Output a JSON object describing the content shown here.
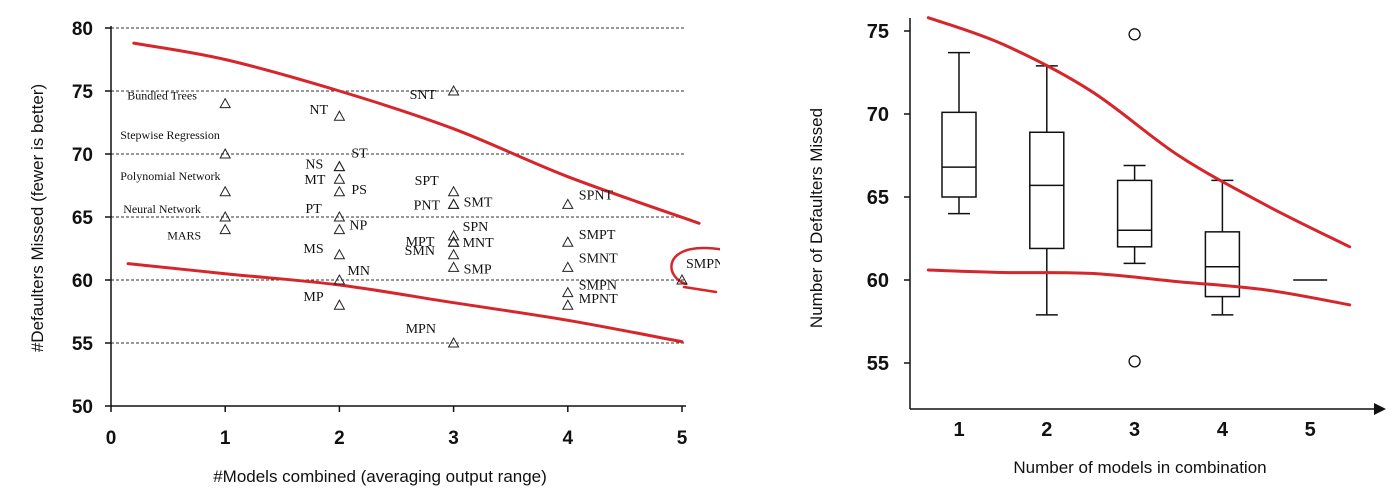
{
  "chart_data": [
    {
      "type": "scatter",
      "xlabel": "#Models combined (averaging output range)",
      "ylabel": "#Defaulters Missed (fewer is better)",
      "xlim": [
        0,
        5.2
      ],
      "ylim": [
        50,
        80
      ],
      "xticks": [
        "0",
        "1",
        "2",
        "3",
        "4",
        "5"
      ],
      "yticks": [
        "50",
        "55",
        "60",
        "65",
        "70",
        "75",
        "80"
      ],
      "grid": "horizontal dashed",
      "marker": "triangle",
      "points": [
        {
          "label": "Bundled Trees",
          "x": 1,
          "y": 74
        },
        {
          "label": "Stepwise Regression",
          "x": 1,
          "y": 70
        },
        {
          "label": "Polynomial Network",
          "x": 1,
          "y": 67
        },
        {
          "label": "Neural Network",
          "x": 1,
          "y": 65
        },
        {
          "label": "MARS",
          "x": 1,
          "y": 64
        },
        {
          "label": "NT",
          "x": 2,
          "y": 73
        },
        {
          "label": "NS",
          "x": 2,
          "y": 69
        },
        {
          "label": "ST",
          "x": 2,
          "y": 69
        },
        {
          "label": "MT",
          "x": 2,
          "y": 68
        },
        {
          "label": "PS",
          "x": 2,
          "y": 67
        },
        {
          "label": "PT",
          "x": 2,
          "y": 65
        },
        {
          "label": "NP",
          "x": 2,
          "y": 64
        },
        {
          "label": "MS",
          "x": 2,
          "y": 62
        },
        {
          "label": "MN",
          "x": 2,
          "y": 60
        },
        {
          "label": "MP",
          "x": 2,
          "y": 58
        },
        {
          "label": "SNT",
          "x": 3,
          "y": 75
        },
        {
          "label": "SPT",
          "x": 3,
          "y": 67
        },
        {
          "label": "SMT",
          "x": 3,
          "y": 66
        },
        {
          "label": "PNT",
          "x": 3,
          "y": 66
        },
        {
          "label": "SPN",
          "x": 3,
          "y": 63.5
        },
        {
          "label": "MPT",
          "x": 3,
          "y": 63
        },
        {
          "label": "MNT",
          "x": 3,
          "y": 63
        },
        {
          "label": "SMN",
          "x": 3,
          "y": 62
        },
        {
          "label": "SMP",
          "x": 3,
          "y": 61
        },
        {
          "label": "MPN",
          "x": 3,
          "y": 55
        },
        {
          "label": "SPNT",
          "x": 4,
          "y": 66
        },
        {
          "label": "SMPT",
          "x": 4,
          "y": 63
        },
        {
          "label": "SMNT",
          "x": 4,
          "y": 61
        },
        {
          "label": "SMPN",
          "x": 4,
          "y": 59
        },
        {
          "label": "MPNT",
          "x": 4,
          "y": 58
        },
        {
          "label": "SMPNT",
          "x": 5,
          "y": 60
        }
      ],
      "upper_curve": [
        [
          0.2,
          78.8
        ],
        [
          1,
          77.5
        ],
        [
          2,
          75
        ],
        [
          3,
          72
        ],
        [
          4,
          68.2
        ],
        [
          5.15,
          64.5
        ]
      ],
      "lower_curve": [
        [
          0.15,
          61.3
        ],
        [
          1,
          60.5
        ],
        [
          2,
          59.6
        ],
        [
          3,
          58.2
        ],
        [
          4,
          56.8
        ],
        [
          5,
          55.1
        ]
      ],
      "highlight": "SMPNT"
    },
    {
      "type": "box",
      "xlabel": "Number of models in combination",
      "ylabel": "Number of Defaulters Missed",
      "xlim": [
        0.3,
        5.5
      ],
      "ylim": [
        52,
        76.5
      ],
      "xticks": [
        "1",
        "2",
        "3",
        "4",
        "5"
      ],
      "yticks": [
        "55",
        "60",
        "65",
        "70",
        "75"
      ],
      "boxes": [
        {
          "x": 1,
          "whislo": 64,
          "q1": 65,
          "med": 66.8,
          "q3": 70.1,
          "whishi": 73.7,
          "outliers": []
        },
        {
          "x": 2,
          "whislo": 57.9,
          "q1": 61.9,
          "med": 65.7,
          "q3": 68.9,
          "whishi": 72.9,
          "outliers": []
        },
        {
          "x": 3,
          "whislo": 61,
          "q1": 62,
          "med": 63,
          "q3": 66,
          "whishi": 66.9,
          "outliers": [
            74.8,
            55.1
          ]
        },
        {
          "x": 4,
          "whislo": 57.9,
          "q1": 59,
          "med": 60.8,
          "q3": 62.9,
          "whishi": 66,
          "outliers": []
        },
        {
          "x": 5,
          "whislo": 60,
          "q1": 60,
          "med": 60,
          "q3": 60,
          "whishi": 60,
          "outliers": []
        }
      ],
      "upper_curve": [
        [
          0.65,
          75.8
        ],
        [
          1.5,
          74.2
        ],
        [
          2.5,
          71.4
        ],
        [
          3.5,
          67.5
        ],
        [
          4.5,
          64.5
        ],
        [
          5.45,
          62
        ]
      ],
      "lower_curve": [
        [
          0.65,
          60.6
        ],
        [
          1.5,
          60.45
        ],
        [
          2.5,
          60.4
        ],
        [
          3.5,
          59.9
        ],
        [
          4.5,
          59.4
        ],
        [
          5.45,
          58.5
        ]
      ]
    }
  ],
  "colors": {
    "curve": "#d6252b",
    "axis": "#111111",
    "grid": "#333333"
  }
}
